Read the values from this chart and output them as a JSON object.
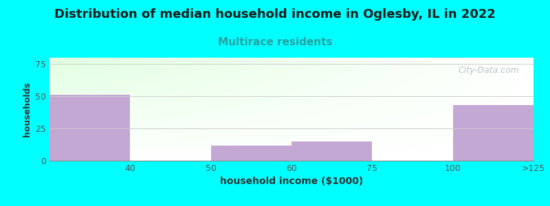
{
  "title": "Distribution of median household income in Oglesby, IL in 2022",
  "subtitle": "Multirace residents",
  "xlabel": "household income ($1000)",
  "ylabel": "households",
  "background_color": "#00FFFF",
  "bar_color": "#C4A8D4",
  "title_fontsize": 13,
  "title_color": "#1a1a1a",
  "subtitle_fontsize": 11,
  "subtitle_color": "#2aa0a0",
  "xlabel_fontsize": 10,
  "ylabel_fontsize": 9,
  "tick_labels": [
    "40",
    "50",
    "60",
    "75",
    "100",
    ">125"
  ],
  "bar_lefts": [
    0,
    1,
    2,
    3,
    4,
    5
  ],
  "bar_rights": [
    1,
    2,
    3,
    4,
    5,
    6
  ],
  "bar_heights": [
    51,
    0,
    12,
    15,
    0,
    43
  ],
  "ylim": [
    0,
    80
  ],
  "yticks": [
    0,
    25,
    50,
    75
  ],
  "watermark": "City-Data.com",
  "watermark_color": "#b0b8c0",
  "grid_color": "#cccccc",
  "axes_color": "#888888"
}
